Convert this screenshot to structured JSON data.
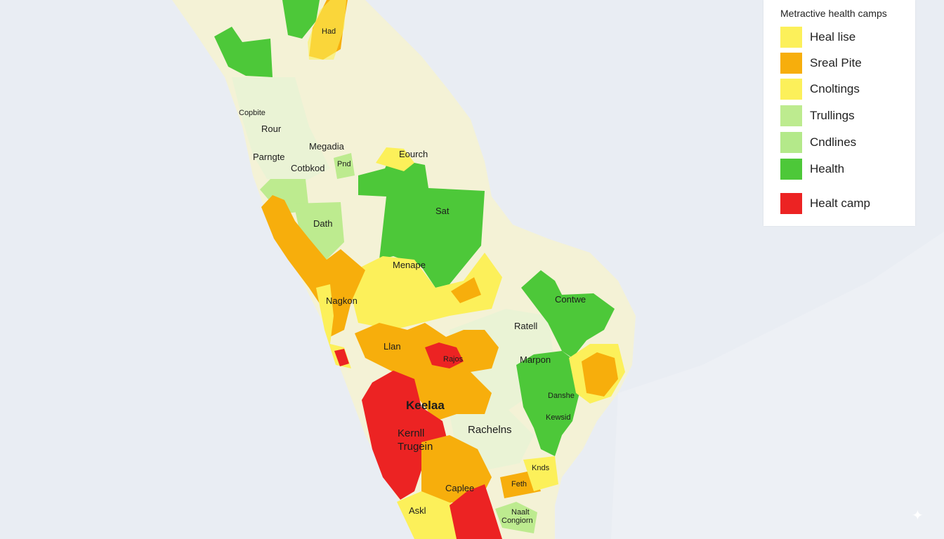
{
  "legend": {
    "title": "Metractive health camps",
    "items": [
      {
        "label": "Heal lise",
        "color": "#fcf05a"
      },
      {
        "label": "Sreal Pite",
        "color": "#f7ae0c"
      },
      {
        "label": "Cnoltings",
        "color": "#fcf05a"
      },
      {
        "label": "Trullings",
        "color": "#bdeb8f"
      },
      {
        "label": "Cndlines",
        "color": "#b4e98a"
      },
      {
        "label": "Health",
        "color": "#4dc839"
      },
      {
        "label": "Healt camp",
        "color": "#ec2323"
      }
    ]
  },
  "map": {
    "colors": {
      "sea": "#e9edf3",
      "land": "#f4f2d6",
      "pale_green": "#eaf3d5",
      "yellow": "#fcf05a",
      "orange": "#f7ae0c",
      "light_green": "#bdeb8f",
      "green": "#4dc839",
      "red": "#ec2323"
    },
    "labels": {
      "had": "Had",
      "copbite": "Copbite",
      "rour": "Rour",
      "parngte": "Parngte",
      "megadia": "Megadia",
      "cotbkod": "Cotbkod",
      "pnd": "Pnd",
      "eourch": "Eourch",
      "sat": "Sat",
      "dath": "Dath",
      "menape": "Menape",
      "nagkon": "Nagkon",
      "contwe": "Contwe",
      "ratell": "Ratell",
      "llan": "Llan",
      "rajos": "Rajos",
      "marpon": "Marpon",
      "keelaa": "Keelaa",
      "kernll": "Kernll",
      "trugein": "Trugein",
      "rachelns": "Rachelns",
      "danshe": "Danshe",
      "kewsid": "Kewsid",
      "caplee": "Caplee",
      "feth": "Feth",
      "knds": "Knds",
      "askl": "Askl",
      "naalt": "Naalt",
      "congiorn": "Congiorn"
    }
  }
}
